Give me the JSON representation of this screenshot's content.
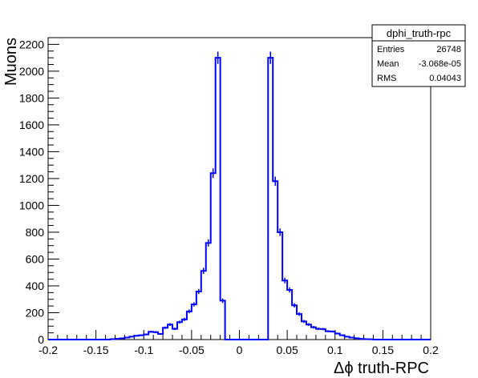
{
  "chart_data": {
    "type": "bar",
    "subtype": "histogram-step",
    "title": "",
    "xlabel": "Δϕ truth-RPC",
    "ylabel": "Muons",
    "xlim": [
      -0.2,
      0.2
    ],
    "ylim": [
      0,
      2250
    ],
    "grid": false,
    "line_color": "#0000ff",
    "x_ticks": [
      "-0.2",
      "-0.15",
      "-0.1",
      "-0.05",
      "0",
      "0.05",
      "0.1",
      "0.15",
      "0.2"
    ],
    "y_ticks": [
      "0",
      "200",
      "400",
      "600",
      "800",
      "1000",
      "1200",
      "1400",
      "1600",
      "1800",
      "2000",
      "2200"
    ],
    "bin_width": 0.005,
    "bin_edges_start": -0.2,
    "values": [
      0,
      0,
      0,
      0,
      0,
      0,
      0,
      0,
      0,
      0,
      0,
      0,
      0,
      3,
      5,
      9,
      15,
      22,
      28,
      32,
      38,
      58,
      55,
      42,
      88,
      112,
      80,
      130,
      150,
      210,
      262,
      358,
      512,
      720,
      1240,
      2100,
      290,
      0,
      0,
      0,
      0,
      0,
      0,
      0,
      0,
      0,
      2100,
      1180,
      800,
      440,
      370,
      255,
      190,
      135,
      112,
      92,
      80,
      78,
      62,
      60,
      45,
      32,
      22,
      15,
      10,
      5,
      3,
      2,
      0,
      0,
      0,
      0,
      0,
      0,
      0,
      0,
      0,
      0,
      0,
      0
    ],
    "legend": {
      "position": "top-right",
      "title": "dphi_truth-rpc",
      "entries": [
        {
          "label": "Entries",
          "value": "26748"
        },
        {
          "label": "Mean",
          "value": "-3.068e-05"
        },
        {
          "label": "RMS",
          "value": "0.04043"
        }
      ]
    }
  }
}
